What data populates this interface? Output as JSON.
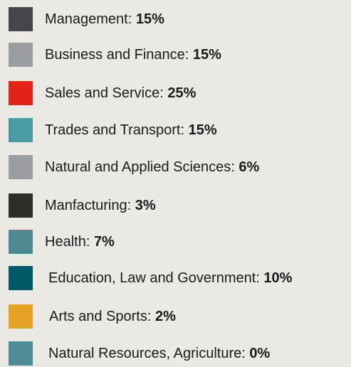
{
  "items": [
    {
      "label": "Management:",
      "value": "15%",
      "color": "#46464a"
    },
    {
      "label": "Business and Finance:",
      "value": "15%",
      "color": "#9c9da1"
    },
    {
      "label": "Sales and Service:",
      "value": "25%",
      "color": "#e2231a"
    },
    {
      "label": "Trades and Transport:",
      "value": "15%",
      "color": "#4a9ba6"
    },
    {
      "label": "Natural and Applied Sciences:",
      "value": "6%",
      "color": "#9c9da1"
    },
    {
      "label": "Manfacturing:",
      "value": "3%",
      "color": "#2f2d2a"
    },
    {
      "label": "Health:",
      "value": "7%",
      "color": "#4f8a93"
    },
    {
      "label": "Education, Law and Government:",
      "value": "10%",
      "color": "#005a66"
    },
    {
      "label": "Arts and Sports:",
      "value": "2%",
      "color": "#e6a323"
    },
    {
      "label": "Natural Resources, Agriculture:",
      "value": "0%",
      "color": "#4e8d96"
    }
  ]
}
